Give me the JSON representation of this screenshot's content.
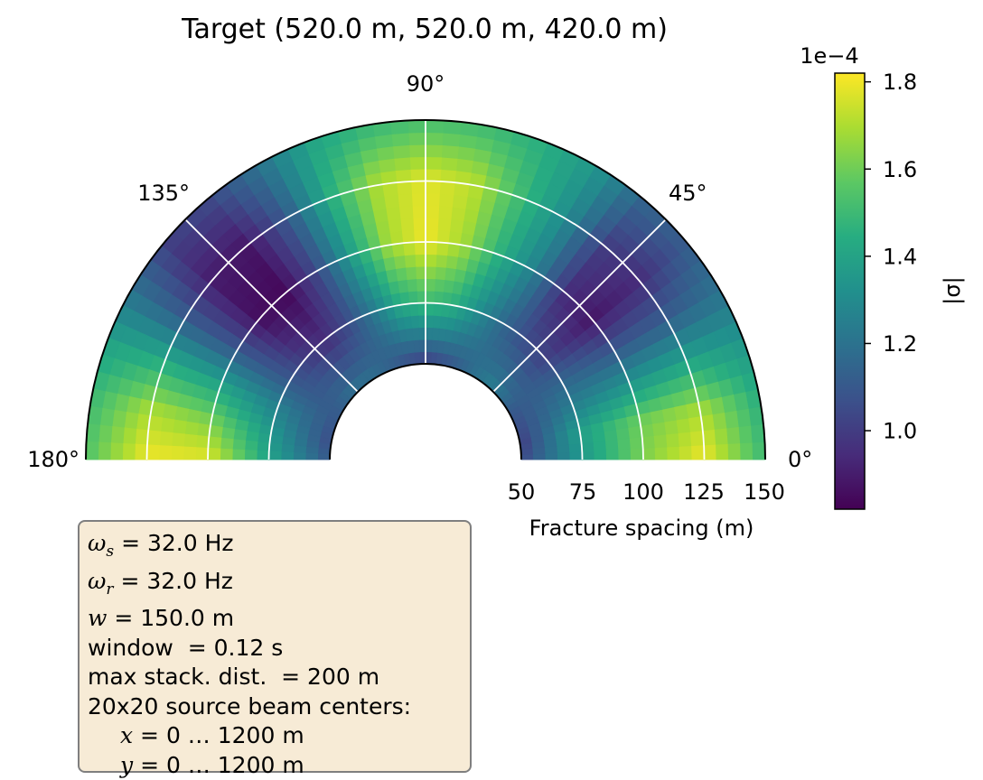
{
  "chart_data": {
    "type": "heatmap",
    "projection": "polar (half plane, 0° to 180°)",
    "title": "Target (520.0 m, 520.0 m, 420.0 m)",
    "angle_ticks": [
      "0°",
      "45°",
      "90°",
      "135°",
      "180°"
    ],
    "angle_tick_values": [
      0,
      45,
      90,
      135,
      180
    ],
    "radial_label": "Fracture spacing (m)",
    "radial_ticks": [
      "50",
      "75",
      "100",
      "125",
      "150"
    ],
    "radial_tick_values": [
      50,
      75,
      100,
      125,
      150
    ],
    "rlim": [
      50,
      150
    ],
    "grid": true,
    "colormap": "viridis",
    "colorbar": {
      "label": "|σ|",
      "offset_text": "1e−4",
      "ticks": [
        "1.0",
        "1.2",
        "1.4",
        "1.6",
        "1.8"
      ],
      "tick_values": [
        1.0,
        1.2,
        1.4,
        1.6,
        1.8
      ],
      "range": [
        0.82,
        1.82
      ],
      "placement": "right"
    },
    "field_description": {
      "radii": [
        50,
        75,
        100,
        125,
        150
      ],
      "profiles": [
        {
          "angle": 0,
          "values": [
            1.05,
            1.35,
            1.62,
            1.8,
            1.5
          ]
        },
        {
          "angle": 10,
          "values": [
            1.0,
            1.38,
            1.6,
            1.7,
            1.45
          ]
        },
        {
          "angle": 20,
          "values": [
            1.05,
            1.25,
            1.35,
            1.42,
            1.35
          ]
        },
        {
          "angle": 30,
          "values": [
            1.1,
            1.15,
            1.1,
            1.12,
            1.2
          ]
        },
        {
          "angle": 40,
          "values": [
            1.2,
            1.02,
            0.88,
            0.95,
            1.12
          ]
        },
        {
          "angle": 50,
          "values": [
            1.25,
            1.05,
            0.95,
            1.0,
            1.15
          ]
        },
        {
          "angle": 60,
          "values": [
            1.2,
            1.15,
            1.25,
            1.3,
            1.35
          ]
        },
        {
          "angle": 70,
          "values": [
            1.12,
            1.3,
            1.45,
            1.5,
            1.45
          ]
        },
        {
          "angle": 80,
          "values": [
            1.05,
            1.45,
            1.68,
            1.72,
            1.5
          ]
        },
        {
          "angle": 90,
          "values": [
            1.0,
            1.5,
            1.8,
            1.78,
            1.52
          ]
        },
        {
          "angle": 100,
          "values": [
            1.05,
            1.42,
            1.68,
            1.7,
            1.48
          ]
        },
        {
          "angle": 110,
          "values": [
            1.12,
            1.22,
            1.38,
            1.45,
            1.4
          ]
        },
        {
          "angle": 120,
          "values": [
            1.18,
            1.05,
            1.05,
            1.1,
            1.2
          ]
        },
        {
          "angle": 130,
          "values": [
            1.2,
            0.95,
            0.84,
            0.88,
            1.05
          ]
        },
        {
          "angle": 140,
          "values": [
            1.18,
            1.0,
            0.86,
            0.9,
            1.02
          ]
        },
        {
          "angle": 150,
          "values": [
            1.12,
            1.1,
            1.1,
            1.12,
            1.2
          ]
        },
        {
          "angle": 160,
          "values": [
            1.08,
            1.25,
            1.4,
            1.45,
            1.4
          ]
        },
        {
          "angle": 170,
          "values": [
            1.05,
            1.35,
            1.62,
            1.7,
            1.5
          ]
        },
        {
          "angle": 180,
          "values": [
            1.1,
            1.4,
            1.78,
            1.8,
            1.55
          ]
        }
      ]
    }
  },
  "info_box": {
    "omega_s": {
      "symbol": "ω",
      "sub": "s",
      "text": " = 32.0 Hz"
    },
    "omega_r": {
      "symbol": "ω",
      "sub": "r",
      "text": " = 32.0 Hz"
    },
    "w": {
      "symbol": "w",
      "text": " = 150.0 m"
    },
    "window": "window  = 0.12 s",
    "max_stack": "max stack. dist.  = 200 m",
    "beams": "20x20 source beam centers:",
    "x_range": {
      "symbol": "x",
      "text": " = 0 … 1200 m"
    },
    "y_range": {
      "symbol": "y",
      "text": " = 0 … 1200 m"
    },
    "background": "#f7ebd6"
  }
}
